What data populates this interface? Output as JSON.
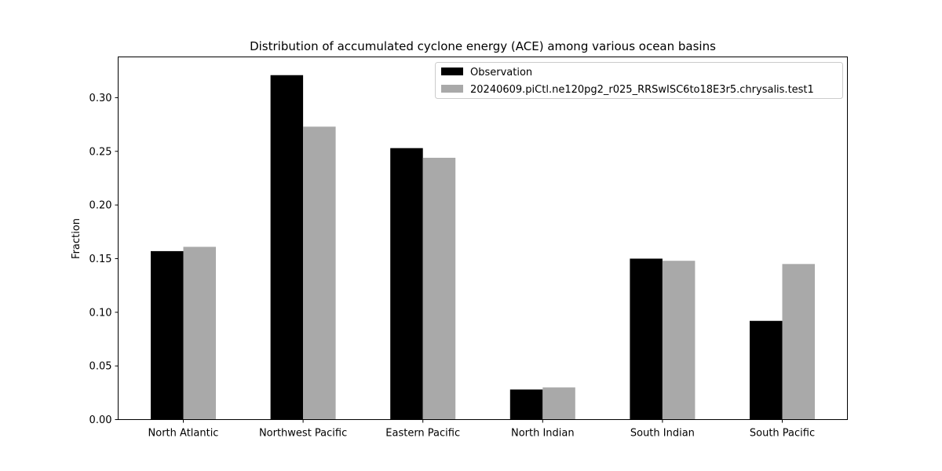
{
  "chart_data": {
    "type": "bar",
    "title": "Distribution of accumulated cyclone energy (ACE) among various ocean basins",
    "xlabel": "",
    "ylabel": "Fraction",
    "ylim": [
      0,
      0.338
    ],
    "yticks": [
      "0.00",
      "0.05",
      "0.10",
      "0.15",
      "0.20",
      "0.25",
      "0.30"
    ],
    "categories": [
      "North Atlantic",
      "Northwest Pacific",
      "Eastern Pacific",
      "North Indian",
      "South Indian",
      "South Pacific"
    ],
    "series": [
      {
        "name": "Observation",
        "color": "#000000",
        "values": [
          0.157,
          0.321,
          0.253,
          0.028,
          0.15,
          0.092
        ]
      },
      {
        "name": "20240609.piCtl.ne120pg2_r025_RRSwISC6to18E3r5.chrysalis.test1",
        "color": "#a9a9a9",
        "values": [
          0.161,
          0.273,
          0.244,
          0.03,
          0.148,
          0.145
        ]
      }
    ],
    "legend_position": "upper-right",
    "grid": false
  }
}
